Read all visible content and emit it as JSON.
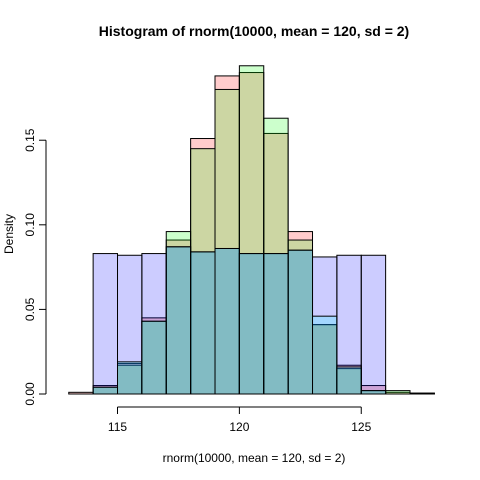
{
  "chart_data": {
    "type": "bar",
    "title": "Histogram of rnorm(10000, mean = 120, sd = 2)",
    "xlabel": "rnorm(10000, mean = 120, sd = 2)",
    "ylabel": "Density",
    "xlim": [
      112.6,
      128.6
    ],
    "ylim": [
      0,
      0.198
    ],
    "x_ticks": [
      115,
      120,
      125
    ],
    "y_ticks": [
      0.0,
      0.05,
      0.1,
      0.15
    ],
    "bin_edges": [
      113,
      114,
      115,
      116,
      117,
      118,
      119,
      120,
      121,
      122,
      123,
      124,
      125,
      126,
      127,
      128
    ],
    "series": [
      {
        "color": "#FF000033",
        "values": [
          0.001,
          0.005,
          0.018,
          0.045,
          0.091,
          0.151,
          0.188,
          0.19,
          0.154,
          0.096,
          0.041,
          0.017,
          0.005,
          0.001,
          0.0005
        ]
      },
      {
        "color": "#00FF0033",
        "values": [
          0.0,
          0.004,
          0.017,
          0.043,
          0.096,
          0.145,
          0.18,
          0.194,
          0.163,
          0.091,
          0.041,
          0.015,
          0.002,
          0.002,
          0.0005
        ]
      },
      {
        "color": "#0000FF33",
        "values": [
          0.0,
          0.083,
          0.082,
          0.083,
          0.087,
          0.084,
          0.086,
          0.083,
          0.083,
          0.085,
          0.081,
          0.082,
          0.082,
          0.0,
          0.0
        ]
      },
      {
        "color": "#00FFFF33",
        "values": [
          0.0,
          0.004,
          0.019,
          0.043,
          0.087,
          0.084,
          0.086,
          0.083,
          0.083,
          0.085,
          0.046,
          0.016,
          0.002,
          0.0,
          0.0
        ]
      }
    ]
  }
}
